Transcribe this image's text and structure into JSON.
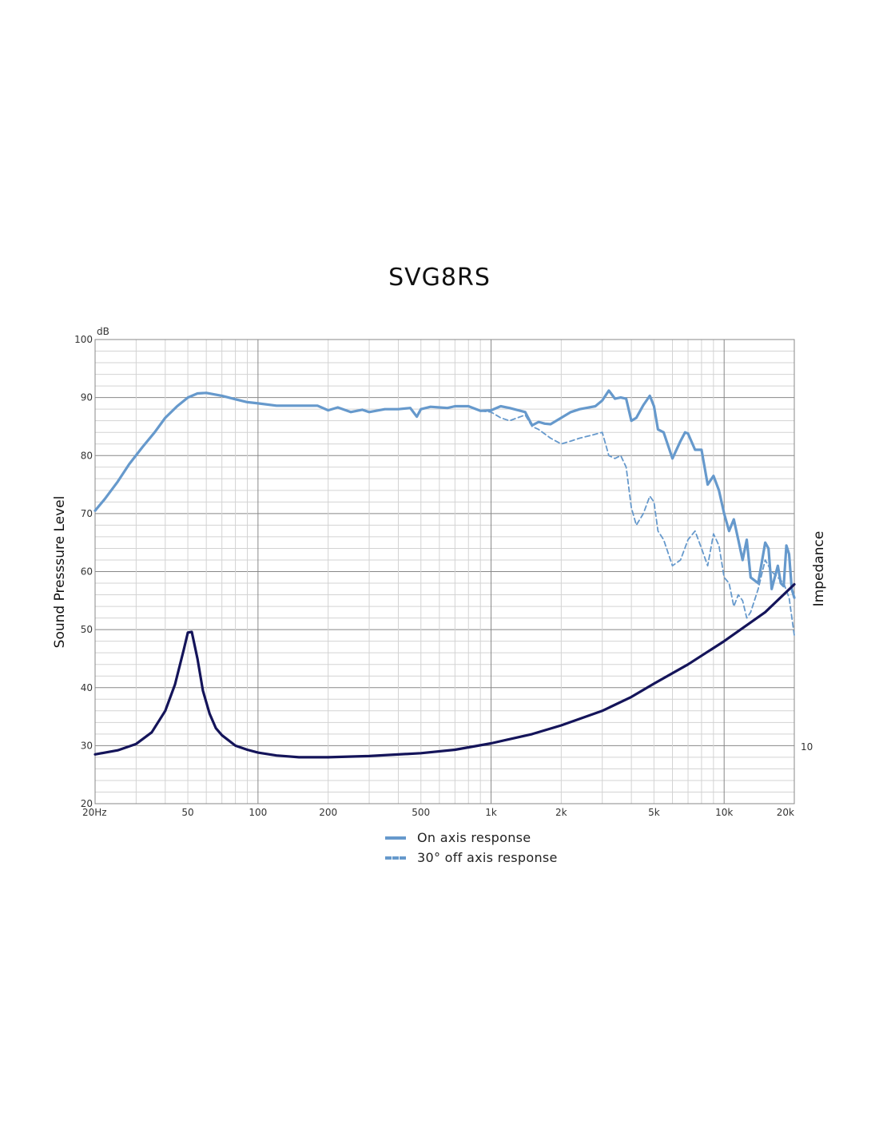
{
  "chart_data": {
    "type": "line",
    "title": "SVG8RS",
    "xlabel": "",
    "ylabel": "Sound Presssure Level",
    "ylabel_right": "Impedance",
    "y_unit": "dB",
    "x_scale": "log",
    "xlim": [
      20,
      20000
    ],
    "ylim": [
      20,
      100
    ],
    "x_ticks": [
      20,
      50,
      100,
      200,
      500,
      1000,
      2000,
      5000,
      10000,
      20000
    ],
    "x_tick_labels": [
      "20Hz",
      "50",
      "100",
      "200",
      "500",
      "1k",
      "2k",
      "5k",
      "10k",
      "20k"
    ],
    "y_ticks": [
      20,
      30,
      40,
      50,
      60,
      70,
      80,
      90,
      100
    ],
    "y_tick_labels": [
      "20",
      "30",
      "40",
      "50",
      "60",
      "70",
      "80",
      "90",
      "100"
    ],
    "right_axis_label": "10",
    "grid": true,
    "legend_position": "bottom-center",
    "colors": {
      "response": "#6699cc",
      "impedance": "#14145a",
      "grid_major": "#888888",
      "grid_minor": "#d3d3d3"
    },
    "series": [
      {
        "name": "On axis response",
        "style": "solid",
        "x": [
          20,
          22,
          25,
          28,
          32,
          36,
          40,
          45,
          50,
          55,
          60,
          70,
          80,
          90,
          100,
          120,
          150,
          180,
          200,
          220,
          250,
          280,
          300,
          350,
          400,
          450,
          480,
          500,
          550,
          600,
          650,
          700,
          800,
          900,
          1000,
          1100,
          1200,
          1400,
          1500,
          1600,
          1700,
          1800,
          2000,
          2200,
          2400,
          2800,
          3000,
          3200,
          3300,
          3400,
          3600,
          3800,
          4000,
          4200,
          4500,
          4800,
          5000,
          5200,
          5500,
          6000,
          6500,
          6800,
          7000,
          7500,
          8000,
          8500,
          9000,
          9500,
          10000,
          10500,
          11000,
          11500,
          12000,
          12500,
          13000,
          14000,
          15000,
          15500,
          16000,
          17000,
          17500,
          18000,
          18500,
          19000,
          19500,
          20000
        ],
        "values": [
          70.5,
          72.5,
          75.5,
          78.5,
          81.5,
          84,
          86.5,
          88.5,
          90,
          90.7,
          90.8,
          90.3,
          89.7,
          89.2,
          89,
          88.6,
          88.6,
          88.6,
          87.8,
          88.3,
          87.5,
          87.9,
          87.5,
          88,
          88,
          88.2,
          86.7,
          88,
          88.4,
          88.3,
          88.2,
          88.5,
          88.5,
          87.7,
          87.8,
          88.5,
          88.2,
          87.5,
          85.2,
          85.8,
          85.5,
          85.4,
          86.5,
          87.5,
          88,
          88.5,
          89.5,
          91.2,
          90.5,
          89.8,
          90,
          89.8,
          86,
          86.5,
          88.7,
          90.3,
          88.5,
          84.5,
          84,
          79.5,
          82.5,
          84,
          83.8,
          81,
          81,
          75,
          76.5,
          74,
          70,
          67,
          69,
          65.5,
          62,
          65.5,
          59,
          58,
          65,
          64,
          57,
          61,
          58,
          57.5,
          64.5,
          63,
          57,
          55.5
        ]
      },
      {
        "name": "30° off axis response",
        "style": "dashed",
        "x": [
          20,
          22,
          25,
          28,
          32,
          36,
          40,
          45,
          50,
          55,
          60,
          70,
          80,
          90,
          100,
          120,
          150,
          180,
          200,
          220,
          250,
          280,
          300,
          350,
          400,
          450,
          480,
          500,
          550,
          600,
          650,
          700,
          800,
          900,
          1000,
          1100,
          1200,
          1400,
          1500,
          1600,
          1800,
          2000,
          2200,
          2400,
          2700,
          3000,
          3200,
          3400,
          3600,
          3800,
          4000,
          4200,
          4500,
          4800,
          5000,
          5200,
          5500,
          6000,
          6500,
          7000,
          7500,
          8000,
          8500,
          9000,
          9500,
          10000,
          10500,
          11000,
          11500,
          12000,
          12500,
          13000,
          14000,
          15000,
          16000,
          17000,
          18000,
          19000,
          20000
        ],
        "values": [
          70.5,
          72.5,
          75.5,
          78.5,
          81.5,
          84,
          86.5,
          88.5,
          90,
          90.7,
          90.8,
          90.3,
          89.7,
          89.2,
          89,
          88.6,
          88.6,
          88.6,
          87.8,
          88.3,
          87.5,
          87.9,
          87.5,
          88,
          88,
          88.2,
          86.7,
          88,
          88.4,
          88.3,
          88.2,
          88.5,
          88.5,
          87.7,
          87.5,
          86.5,
          86,
          87,
          85,
          84.5,
          83,
          82,
          82.5,
          83,
          83.5,
          84,
          80,
          79.5,
          80,
          78,
          71,
          68,
          70,
          73,
          72,
          67,
          65.5,
          61,
          62,
          65.5,
          67,
          64,
          61,
          66.5,
          64.5,
          59,
          58,
          54,
          56,
          55,
          52,
          53,
          57,
          62,
          60,
          59,
          58,
          55.5,
          49
        ]
      },
      {
        "name": "",
        "style": "solid",
        "x": [
          20,
          25,
          30,
          35,
          40,
          44,
          48,
          50,
          52,
          55,
          58,
          62,
          66,
          70,
          80,
          90,
          100,
          120,
          150,
          200,
          300,
          500,
          700,
          1000,
          1500,
          2000,
          3000,
          4000,
          5000,
          7000,
          10000,
          15000,
          20000
        ],
        "values": [
          28.5,
          29.2,
          30.3,
          32.3,
          36,
          40.5,
          46.5,
          49.5,
          49.6,
          45,
          39.5,
          35.5,
          33,
          31.8,
          30,
          29.3,
          28.8,
          28.3,
          28,
          28,
          28.2,
          28.7,
          29.3,
          30.4,
          32,
          33.5,
          36,
          38.4,
          40.7,
          44,
          48,
          53,
          57.8
        ]
      }
    ]
  }
}
